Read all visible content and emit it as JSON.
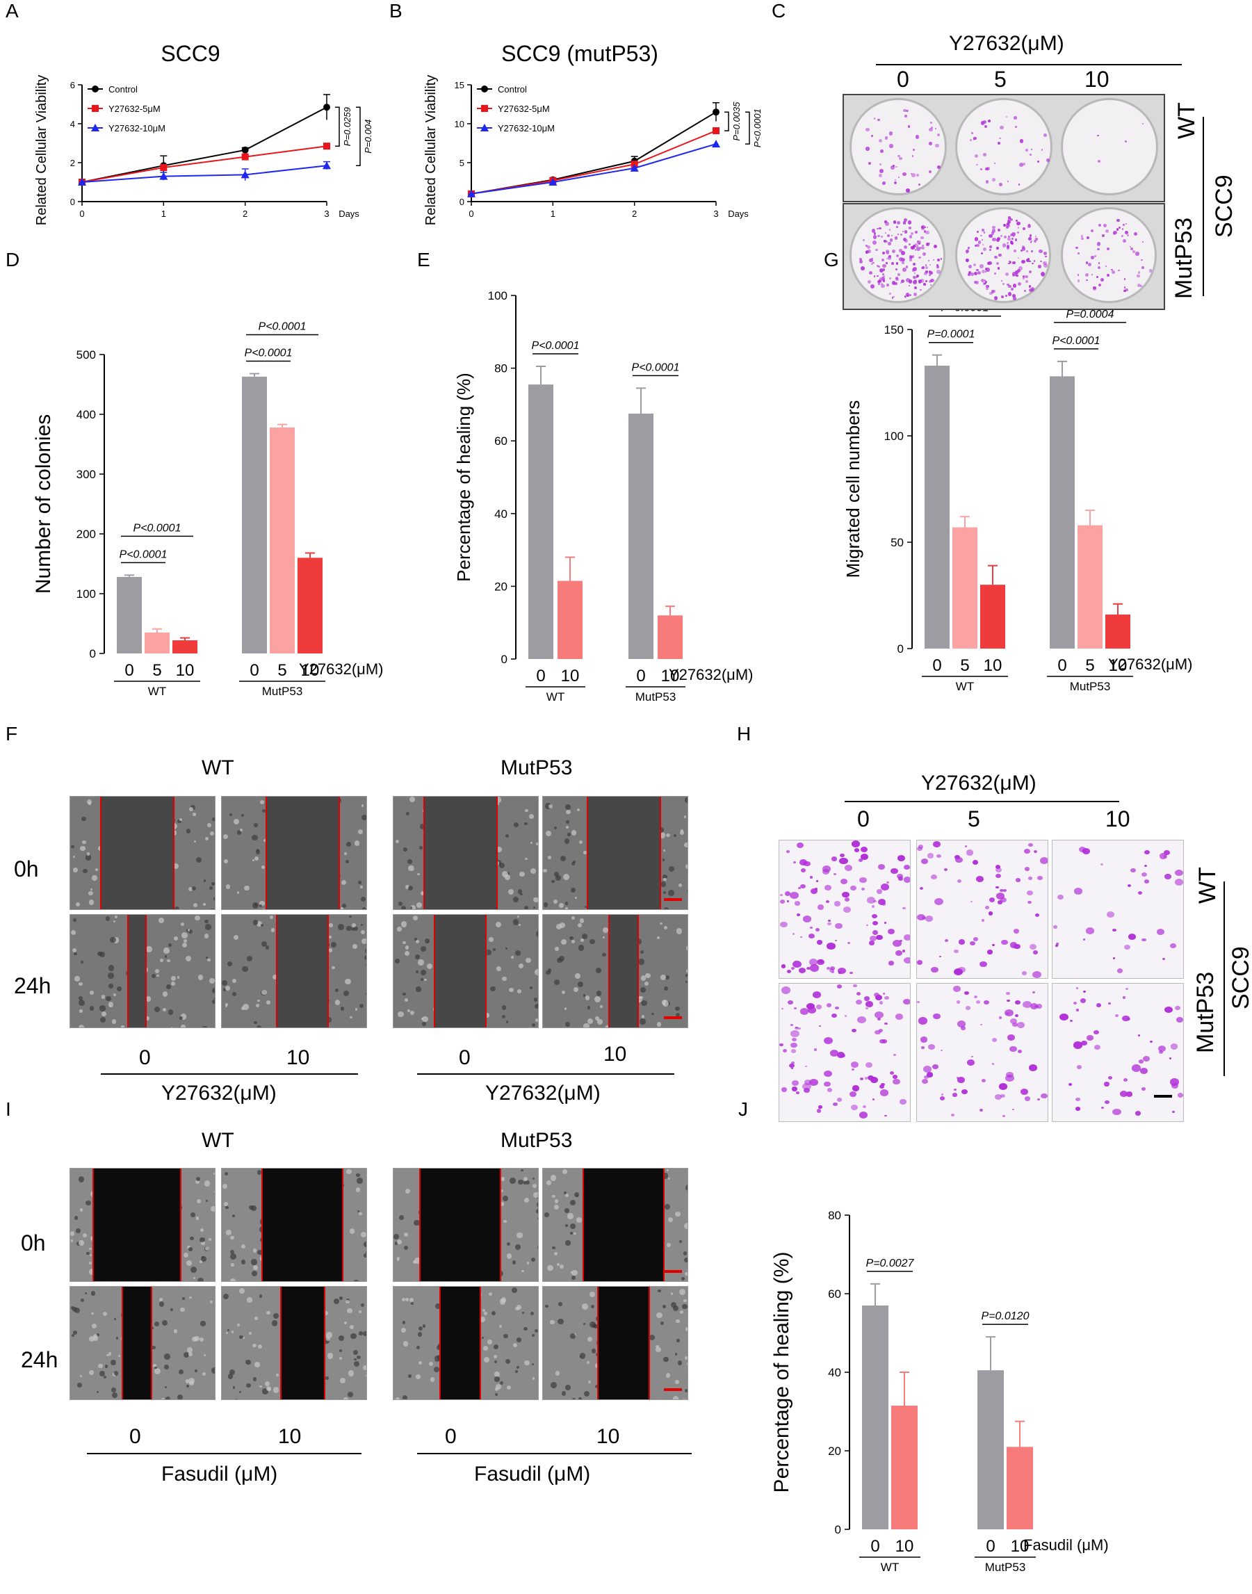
{
  "panels": {
    "A": "A",
    "B": "B",
    "C": "C",
    "D": "D",
    "E": "E",
    "F": "F",
    "G": "G",
    "H": "H",
    "I": "I",
    "J": "J"
  },
  "colors": {
    "control": "#000000",
    "y5": "#e8161b",
    "y10": "#1f27f0",
    "grey": "#9c9ca2",
    "pink_light": "#fba3a3",
    "pink": "#f77b7b",
    "red": "#ef3b3b",
    "stain": "#b12ed8",
    "scale": "#e00000"
  },
  "chart_data": [
    {
      "id": "A",
      "type": "line",
      "title": "SCC9",
      "xlabel": "Days",
      "ylabel": "Related Cellular Viability",
      "x": [
        0,
        1,
        2,
        3
      ],
      "xlim": [
        0,
        3
      ],
      "ylim": [
        0,
        6
      ],
      "yticks": [
        0,
        2,
        4,
        6
      ],
      "series": [
        {
          "name": "Control",
          "values": [
            1,
            1.85,
            2.65,
            4.85
          ],
          "err": [
            0,
            0.5,
            0.12,
            0.65
          ],
          "marker": "circle",
          "color": "#000000"
        },
        {
          "name": "Y27632-5μM",
          "values": [
            1,
            1.75,
            2.3,
            2.85
          ],
          "err": [
            0,
            0,
            0.08,
            0.08
          ],
          "marker": "square",
          "color": "#e8161b"
        },
        {
          "name": "Y27632-10μM",
          "values": [
            1,
            1.3,
            1.38,
            1.85
          ],
          "err": [
            0,
            0.2,
            0.3,
            0.2
          ],
          "marker": "triangle",
          "color": "#1f27f0"
        }
      ],
      "annotations": [
        "P=0.0259",
        "P=0.004"
      ]
    },
    {
      "id": "B",
      "type": "line",
      "title": "SCC9 (mutP53)",
      "xlabel": "Days",
      "ylabel": "Related Cellular Viability",
      "x": [
        0,
        1,
        2,
        3
      ],
      "xlim": [
        0,
        3
      ],
      "ylim": [
        0,
        15
      ],
      "yticks": [
        0,
        5,
        10,
        15
      ],
      "series": [
        {
          "name": "Control",
          "values": [
            1,
            2.8,
            5.2,
            11.5
          ],
          "err": [
            0,
            0.2,
            0.6,
            1.2
          ],
          "marker": "circle",
          "color": "#000000"
        },
        {
          "name": "Y27632-5μM",
          "values": [
            1,
            2.7,
            4.8,
            9.1
          ],
          "err": [
            0,
            0,
            0,
            0
          ],
          "marker": "square",
          "color": "#e8161b"
        },
        {
          "name": "Y27632-10μM",
          "values": [
            1,
            2.5,
            4.3,
            7.4
          ],
          "err": [
            0,
            0,
            0,
            0
          ],
          "marker": "triangle",
          "color": "#1f27f0"
        }
      ],
      "annotations": [
        "P=0.0035",
        "P<0.0001"
      ]
    },
    {
      "id": "D",
      "type": "bar",
      "ylabel": "Number of colonies",
      "ylim": [
        0,
        500
      ],
      "yticks": [
        0,
        100,
        200,
        300,
        400,
        500
      ],
      "treatment": "Y27632(μM)",
      "groups": [
        {
          "name": "WT",
          "categories": [
            "0",
            "5",
            "10"
          ],
          "values": [
            128,
            35,
            22
          ],
          "err": [
            3,
            6,
            4
          ]
        },
        {
          "name": "MutP53",
          "categories": [
            "0",
            "5",
            "10"
          ],
          "values": [
            463,
            378,
            160
          ],
          "err": [
            5,
            5,
            8
          ]
        }
      ],
      "annotations": [
        "P<0.0001",
        "P<0.0001",
        "P<0.0001",
        "P<0.0001"
      ]
    },
    {
      "id": "E",
      "type": "bar",
      "ylabel": "Percentage of healing (%)",
      "ylim": [
        0,
        100
      ],
      "yticks": [
        0,
        20,
        40,
        60,
        80,
        100
      ],
      "treatment": "Y27632(μM)",
      "groups": [
        {
          "name": "WT",
          "categories": [
            "0",
            "10"
          ],
          "values": [
            75.5,
            21.5
          ],
          "err": [
            5,
            6.5
          ]
        },
        {
          "name": "MutP53",
          "categories": [
            "0",
            "10"
          ],
          "values": [
            67.5,
            12
          ],
          "err": [
            7,
            2.5
          ]
        }
      ],
      "annotations": [
        "P<0.0001",
        "P<0.0001"
      ]
    },
    {
      "id": "G",
      "type": "bar",
      "ylabel": "Migrated cell numbers",
      "ylim": [
        0,
        150
      ],
      "yticks": [
        0,
        50,
        100,
        150
      ],
      "treatment": "Y27632(μM)",
      "groups": [
        {
          "name": "WT",
          "categories": [
            "0",
            "5",
            "10"
          ],
          "values": [
            133,
            57,
            30
          ],
          "err": [
            5,
            5,
            9
          ]
        },
        {
          "name": "MutP53",
          "categories": [
            "0",
            "5",
            "10"
          ],
          "values": [
            128,
            58,
            16
          ],
          "err": [
            7,
            7,
            5
          ]
        }
      ],
      "annotations": [
        "P=0.0001",
        "P=0.0001",
        "P<0.0001",
        "P=0.0004"
      ]
    },
    {
      "id": "J",
      "type": "bar",
      "ylabel": "Percentage of healing (%)",
      "ylim": [
        0,
        80
      ],
      "yticks": [
        0,
        20,
        40,
        60,
        80
      ],
      "treatment": "Fasudil (μM)",
      "groups": [
        {
          "name": "WT",
          "categories": [
            "0",
            "10"
          ],
          "values": [
            57,
            31.5
          ],
          "err": [
            5.5,
            8.5
          ]
        },
        {
          "name": "MutP53",
          "categories": [
            "0",
            "10"
          ],
          "values": [
            40.5,
            21
          ],
          "err": [
            8.5,
            6.5
          ]
        }
      ],
      "annotations": [
        "P=0.0027",
        "P=0.0120"
      ]
    }
  ],
  "panelC": {
    "header": "Y27632(μM)",
    "doses": [
      "0",
      "5",
      "10"
    ],
    "rows": [
      "WT",
      "MutP53"
    ],
    "cell": "SCC9",
    "density": [
      [
        0.25,
        0.2,
        0.02
      ],
      [
        1.0,
        0.85,
        0.35
      ]
    ]
  },
  "panelF": {
    "groups": [
      "WT",
      "MutP53"
    ],
    "times": [
      "0h",
      "24h"
    ],
    "doses": [
      "0",
      "10",
      "0",
      "10"
    ],
    "treatment": "Y27632(μM)",
    "gap_width": [
      [
        0.5,
        0.5,
        0.5,
        0.5
      ],
      [
        0.12,
        0.35,
        0.35,
        0.2
      ]
    ]
  },
  "panelH": {
    "header": "Y27632(μM)",
    "doses": [
      "0",
      "5",
      "10"
    ],
    "rows": [
      "WT",
      "MutP53"
    ],
    "cell": "SCC9",
    "density": [
      [
        0.95,
        0.6,
        0.3
      ],
      [
        0.85,
        0.6,
        0.45
      ]
    ]
  },
  "panelI": {
    "groups": [
      "WT",
      "MutP53"
    ],
    "times": [
      "0h",
      "24h"
    ],
    "doses": [
      "0",
      "10",
      "0",
      "10"
    ],
    "treatment": "Fasudil (μM)",
    "gap_width": [
      [
        0.6,
        0.55,
        0.55,
        0.55
      ],
      [
        0.2,
        0.3,
        0.28,
        0.35
      ]
    ]
  }
}
